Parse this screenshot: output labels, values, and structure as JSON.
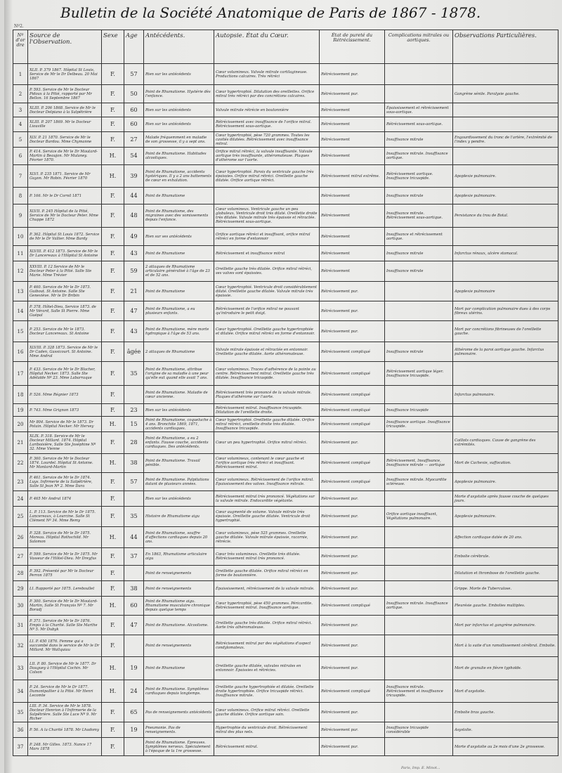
{
  "title": "Bulletin de la Société Anatomique de Paris de 1867 - 1878.",
  "sheet_number": "Nº2.",
  "columns": [
    "Nº d'ordre",
    "Source de l'Observation.",
    "Sexe",
    "Age",
    "Antécédents.",
    "Autopsie. État du Cœur.",
    "État de pureté du Rétrécissement.",
    "Complications mitrales ou aortiques.",
    "Observations Particulières."
  ],
  "rows": [
    {
      "n": "1",
      "src": "XLII. P. 379 1867. Hôpital St Louis, Service de Mr le Dr Delbeau. 20 Mai 1867",
      "sex": "F.",
      "age": "57",
      "ant": "Rien sur les antécédents",
      "aut": "Cœur volumineux. Valvule mitrale cartilagineuse. Productions calcaires. Très rétréci",
      "pur": "Rétrécissement pur.",
      "comp": "",
      "obs": ""
    },
    {
      "n": "2",
      "src": "P. 593. Service de Mr le Docteur Pidoux à la Pitié, rapporté par Mr Bellon. 16 Septembre 1867",
      "sex": "F.",
      "age": "50",
      "ant": "Point de Rhumatisme. Hystérie dès l'enfance.",
      "aut": "Cœur hypertrophié. Dilatation des oreillettes. Orifice mitral très rétréci par des concrétions calcaires.",
      "pur": "Rétrécissement pur.",
      "comp": "",
      "obs": "Gangrène sénile. Paralysie gauche."
    },
    {
      "n": "3",
      "src": "XLIII. P. 206 1868. Service de Mr le Docteur Delpiano à la Salpêtrière",
      "sex": "F.",
      "age": "60",
      "ant": "Rien sur les antécédents",
      "aut": "Valvule mitrale rétrécie en boutonnière",
      "pur": "Rétrécissement",
      "comp": "Épaississement et rétrécissement sous-aortique.",
      "obs": ""
    },
    {
      "n": "4",
      "src": "XLIII. P. 207 1869. Mr le Docteur Liouville",
      "sex": "F.",
      "age": "60",
      "ant": "Rien sur les antécédents",
      "aut": "Rétrécissement avec insuffisance de l'orifice mitral. Rétrécissement sous-aortique.",
      "pur": "Rétrécissement",
      "comp": "Rétrécissement sous-aortique.",
      "obs": ""
    },
    {
      "n": "5",
      "src": "XLV. P. 21 1870. Service de Mr le Docteur Bardou. Mme Chymanne",
      "sex": "F.",
      "age": "27",
      "ant": "Malade fréquemment en maladie de son grossesse, il y a sept ans.",
      "aut": "Cœur hypertrophié, pèse 720 grammes. Toutes les cavités dilatées. Rétrécissement avec insuffisance mitral.",
      "pur": "Rétrécissement",
      "comp": "Insuffisance mitrale",
      "obs": "Engourdissement du tronc de l'artère, l'extrémité de l'index y pendre."
    },
    {
      "n": "6",
      "src": "P. 414. Service de Mr le Dr Moutard-Martin à Beaujon. Mr Mulaney. Février 1870.",
      "sex": "H.",
      "age": "54",
      "ant": "Point de Rhumatisme. Habitudes alcooliques.",
      "aut": "Orifice mitral rétréci, la valvule insuffisante. Valvule aortique très insuffisante, athéromateuse. Plaques d'athérome sur l'aorte.",
      "pur": "Rétrécissement",
      "comp": "Insuffisance mitrale. Insuffisance aortique.",
      "obs": ""
    },
    {
      "n": "7",
      "src": "XLVI. P. 235 1871. Service de Mr Guyon. Mr Robin. Février 1870",
      "sex": "H.",
      "age": "39",
      "ant": "Point de Rhumatisme, accidents hystériques. Il y a 2 ans battements de cœur en exhalation.",
      "aut": "Cœur hypertrophié. Parois du ventricule gauche très épaissies. Orifice mitral rétréci. Oreillette gauche dilatée. Orifice aortique rétréci.",
      "pur": "Rétrécissement mitral extrême.",
      "comp": "Rétrécissement aortique. Insuffisance tricuspide.",
      "obs": "Apoplexie pulmonaire."
    },
    {
      "n": "8",
      "src": "P. 166. Mr le Dr Cornil 1871",
      "sex": "F.",
      "age": "44",
      "ant": "Point de Rhumatisme",
      "aut": "",
      "pur": "Rétrécissement",
      "comp": "Insuffisance mitrale",
      "obs": "Apoplexie pulmonaire."
    },
    {
      "n": "9",
      "src": "XLVII. P. 245 Hôpital de la Pitié, Service de Mr le Docteur Peter. Mme Chuppe 1872",
      "sex": "F.",
      "age": "48",
      "ant": "Point de Rhumatisme, des migraines avec des vomissements depuis l'enfance.",
      "aut": "Cœur volumineux. Ventricule gauche un peu globuleux. Ventricule droit très dilaté. Oreillette droite très dilatée. Valvule mitrale très épaissie et rétractée. Rétrécissement sous-aortique.",
      "pur": "Rétrécissement",
      "comp": "Insuffisance mitrale. Rétrécissement sous-aortique.",
      "obs": "Persistance du trou de Botal."
    },
    {
      "n": "10",
      "src": "P. 362. Hôpital St Louis 1872. Service de Mr le Dr Vallier. Mme Bardy",
      "sex": "F.",
      "age": "49",
      "ant": "Rien sur ses antécédents",
      "aut": "Orifice aortique rétréci et insuffisant, orifice mitral rétréci en forme d'entonnoir",
      "pur": "Rétrécissement",
      "comp": "Insuffisance et rétrécissement aortique.",
      "obs": ""
    },
    {
      "n": "11",
      "src": "XLVIII. P. 412 1873. Service de Mr le Dr Lancereaux à l'Hôpital St Antoine",
      "sex": "F.",
      "age": "43",
      "ant": "Point de Rhumatisme",
      "aut": "Rétrécissement et insuffisance mitral",
      "pur": "Rétrécissement",
      "comp": "Insuffisance mitrale",
      "obs": "Infarctus rénaux, ulcère stomacal."
    },
    {
      "n": "12",
      "src": "XXVIII. P. 12 Service de Mr le Docteur Peter à la Pitié. Salle Ste Marie. Mme Trévier",
      "sex": "F.",
      "age": "59",
      "ant": "2 attaques de Rhumatisme articulaire généralisé à l'âge de 23 et de 52 ans.",
      "aut": "Oreillette gauche très dilatée. Orifice mitral rétréci, ses valves sont épaissies.",
      "pur": "Rétrécissement",
      "comp": "Insuffisance mitrale",
      "obs": ""
    },
    {
      "n": "13",
      "src": "P. 460. Service de Mr le Dr 1873. Guibout. St Antoine. Salle Ste Geneviève. Mr le Dr Bribin",
      "sex": "F.",
      "age": "21",
      "ant": "Point de Rhumatisme",
      "aut": "Cœur hypertrophié. Ventricule droit considérablement dilaté. Oreillette gauche dilatée. Valvule mitrale très épaissie.",
      "pur": "Rétrécissement pur.",
      "comp": "",
      "obs": "Apoplexie pulmonaire"
    },
    {
      "n": "14",
      "src": "P. 378. Hôtel-Dieu, Service 1873. de Mr Vérard, Salle St Pierre. Mme Guépal",
      "sex": "F.",
      "age": "47",
      "ant": "Point de Rhumatisme, a eu plusieurs enfants.",
      "aut": "Rétrécissement de l'orifice mitral ne pouvant qu'introduire le petit doigt.",
      "pur": "Rétrécissement pur.",
      "comp": "",
      "obs": "Mort par complication pulmonaire dues à des corps fibreux utérins."
    },
    {
      "n": "15",
      "src": "P. 253. Service de Mr le 1873. Docteur Lancereaux. St Antoine",
      "sex": "F.",
      "age": "43",
      "ant": "Point de Rhumatisme, mère morte hydropique à l'âge de 53 ans.",
      "aut": "Cœur hypertrophié. Oreillette gauche hypertrophiée et dilatée. Orifice mitral rétréci en forme d'entonnoir.",
      "pur": "Rétrécissement pur.",
      "comp": "",
      "obs": "Mort par concrétions fibrineuses de l'oreillette gauche."
    },
    {
      "n": "16",
      "src": "XLVIII. P. 328 1873. Service de Mr le Dr Caden, Gassicourt. St Antoine. Mme Andral",
      "sex": "F.",
      "age": "âgée",
      "ant": "2 attaques de Rhumatisme",
      "aut": "Valvule mitrale épaissie et rétractée en entonnoir. Oreillette gauche dilatée. Aorte athéromateuse.",
      "pur": "Rétrécissement compliqué",
      "comp": "Insuffisance mitrale",
      "obs": "Athérome de la paroi aortique gauche. Infarctus pulmonaire."
    },
    {
      "n": "17",
      "src": "P. 433. Service de Mr le Dr Blacher, Hôpital Necker. 1873. Salle Ste Adélaïde Nº 23. Mme Labarraque",
      "sex": "F.",
      "age": "35",
      "ant": "Point de Rhumatisme, attribue l'origine de sa maladie à une peur qu'elle eut quand elle avait 7 ans.",
      "aut": "Cœur volumineux. Traces d'adhérence de la pointe au centre. Rétrécissement mitral. Oreillette gauche très dilatée. Insuffisance tricuspide.",
      "pur": "Rétrécissement compliqué",
      "comp": "Rétrécissement aortique léger. Insuffisance tricuspide.",
      "obs": ""
    },
    {
      "n": "18",
      "src": "P. 526. Mme Régnier 1873",
      "sex": "F.",
      "age": "",
      "ant": "Point de Rhumatisme. Maladie de cœur ancienne.",
      "aut": "Rétrécissement très prononcé de la valvule mitrale. Plaques d'athérome sur l'aorte.",
      "pur": "Rétrécissement compliqué",
      "comp": "",
      "obs": "Infarctus pulmonaire."
    },
    {
      "n": "19",
      "src": "P. 743. Mme Grignon 1873",
      "sex": "F.",
      "age": "23",
      "ant": "Rien sur les antécédents",
      "aut": "Rétrécissement mitral. Insuffisance tricuspide. Dilatation de l'oreillette droite.",
      "pur": "Rétrécissement compliqué",
      "comp": "Insuffisance tricuspide",
      "obs": ""
    },
    {
      "n": "20",
      "src": "Mr 804. Service de Mr le 1873. Dr Potain. Hôpital Necker. Mr Hervey",
      "sex": "H.",
      "age": "15",
      "ant": "Point de Rhumatisme, coqueluche à 4 ans. Bronchite 1869, 1871, accidents cardiaques.",
      "aut": "Cœur hypertrophié. Oreillette gauche dilatée. Orifice mitral rétréci, oreillette droite très dilatée. Insuffisance tricuspide.",
      "pur": "Rétrécissement compliqué",
      "comp": "Insuffisance aortique. Insuffisance tricuspide.",
      "obs": ""
    },
    {
      "n": "21",
      "src": "XLIX. P. 318. Service de Mr le Docteur Millard. 1874. Hôpital Lariboisière, Salle Ste Joséphine Nº 32. Mme Vienne",
      "sex": "F.",
      "age": "28",
      "ant": "Point de Rhumatisme, a eu 2 enfants. Fausse couche, accidents cardiaques. Des antécédents.",
      "aut": "Cœur un peu hypertrophié. Orifice mitral rétréci.",
      "pur": "Rétrécissement pur.",
      "comp": "",
      "obs": "Caillots cardiaques. Cause de gangrène des extrémités."
    },
    {
      "n": "22",
      "src": "P. 360. Service de Mr le Docteur 1874. Lourdel. Hôpital St Antoine. Mr Montard-Martin",
      "sex": "H.",
      "age": "38",
      "ant": "Point de Rhumatisme. Travail pénible.",
      "aut": "Cœur volumineux, contenant le cœur gauche et l'orifice aortique très rétréci et insuffisant. Rétrécissement mitral.",
      "pur": "Rétrécissement compliqué",
      "comp": "Rétrécissement, Insuffisance, Insuffisance mitrale — aortique",
      "obs": "Mort de Cachexie, suffocation."
    },
    {
      "n": "23",
      "src": "P. 461. Service de Mr le Dr 1874. Luys. Infirmerie de la Salpêtrière, Salle St Jean Nº 2. Mme Dara",
      "sex": "F.",
      "age": "57",
      "ant": "Point de Rhumatisme. Palpitations datant de plusieurs années.",
      "aut": "Cœur volumineux. Rétrécissement de l'orifice mitral. Épaississement des valves. Insuffisance mitrale.",
      "pur": "Rétrécissement compliqué",
      "comp": "Insuffisance mitrale. Myocardite scléreuse.",
      "obs": "Apoplexie pulmonaire."
    },
    {
      "n": "24",
      "src": "P. 465 Mr Andral 1874",
      "sex": "F.",
      "age": "",
      "ant": "Rien sur les antécédents",
      "aut": "Rétrécissement mitral très prononcé. Végétations sur la valvule mitrale. Endocardite végétante.",
      "pur": "Rétrécissement pur.",
      "comp": "",
      "obs": "Morte d'asystolie après fausse couche de quelques jours."
    },
    {
      "n": "25",
      "src": "L. P. 113. Service de Mr le Dr 1875. Lancereaux, à Lourcine. Salle St Clément Nº 34. Mme Remy",
      "sex": "F.",
      "age": "35",
      "ant": "Histoire de Rhumatisme aigu",
      "aut": "Cœur augmenté de volume. Valvule mitrale très épaissie. Oreillette gauche dilatée. Ventricule droit hypertrophié.",
      "pur": "Rétrécissement pur.",
      "comp": "Orifice aortique insuffisant, Végétations pulmonaire.",
      "obs": "Apoplexie pulmonaire."
    },
    {
      "n": "26",
      "src": "P. 328. Service de Mr le Dr 1875. Moreau. Hôpital Rothschild. Mr Salomon",
      "sex": "H.",
      "age": "44",
      "ant": "Point de Rhumatisme, souffre d'affections cardiaques depuis 20 ans.",
      "aut": "Cœur volumineux, pèse 525 grammes. Oreillette gauche dilatée. Valvule mitrale épaissie, racornie, rétrécie.",
      "pur": "Rétrécissement pur.",
      "comp": "",
      "obs": "Affection cardiaque datée de 20 ans."
    },
    {
      "n": "27",
      "src": "P. 599. Service de Mr le Dr 1875. Mr Vasseur de l'Hôtel-Dieu. Mr Dreyfus",
      "sex": "F.",
      "age": "37",
      "ant": "En 1863, Rhumatisme articulaire aigu",
      "aut": "Cœur très volumineux. Oreillette très dilatée. Rétrécissement mitral très prononcé.",
      "pur": "Rétrécissement pur.",
      "comp": "",
      "obs": "Embolie cérébrale."
    },
    {
      "n": "28",
      "src": "P. 392. Présenté par Mr le Docteur Perron 1875",
      "sex": "F.",
      "age": "",
      "ant": "Point de renseignements",
      "aut": "Oreillette gauche dilatée. Orifice mitral rétréci en forme de boutonnière.",
      "pur": "Rétrécissement pur.",
      "comp": "",
      "obs": "Dilatation et thrombose de l'oreillette gauche."
    },
    {
      "n": "29",
      "src": "LI. Rapporté par 1875. Lereboullet",
      "sex": "F.",
      "age": "38",
      "ant": "Point de renseignements",
      "aut": "Épaississement, rétrécissement de la valvule mitrale.",
      "pur": "Rétrécissement pur.",
      "comp": "",
      "obs": "Grippe. Morte de Tuberculose."
    },
    {
      "n": "30",
      "src": "P. 300. Service de Mr le Dr Moutard-Martin, Salle St François Nº 7. Mr Boradj",
      "sex": "H.",
      "age": "60",
      "ant": "Point de Rhumatisme aigu. Rhumatisme musculaire chronique depuis quelque temps",
      "aut": "Cœur hypertrophié, pèse 450 grammes. Péricardite. Rétrécissement mitral. Insuffisance aortique.",
      "pur": "Rétrécissement compliqué",
      "comp": "Insuffisance mitrale. Insuffisance aortique.",
      "obs": "Pleurésie gauche. Embolies multiples."
    },
    {
      "n": "31",
      "src": "P. 371. Service de Mr le Dr 1876. Empis à la Charité. Salle Ste Marthe Nº 5. Mr Dubyk",
      "sex": "F.",
      "age": "47",
      "ant": "Point de Rhumatisme. Alcoolisme.",
      "aut": "Oreillette gauche très dilatée. Orifice mitral rétréci. Aorte très athéromateuse.",
      "pur": "Rétrécissement pur.",
      "comp": "",
      "obs": "Mort par infarctus et gangrène pulmonaire."
    },
    {
      "n": "32",
      "src": "LI. P. 450 1876. Femme qui a succombé dans le service de Mr le Dr Millard. Mr Wallquiau",
      "sex": "F.",
      "age": "",
      "ant": "Point de renseignements",
      "aut": "Rétrécissement mitral par des végétations d'aspect condylomateux.",
      "pur": "Rétrécissement pur.",
      "comp": "",
      "obs": "Mort à la suite d'un ramollissement cérébral. Embolie."
    },
    {
      "n": "33",
      "src": "LII. P. 80. Service de Mr le 1877. Dr Dauguey à l'Hôpital Cochin. Mr Colson",
      "sex": "H.",
      "age": "19",
      "ant": "Point de Rhumatisme",
      "aut": "Oreillette gauche dilatée, valvules mitrales en entonnoir. Épaissies et rétrécies.",
      "pur": "Rétrécissement pur.",
      "comp": "",
      "obs": "Mort de granulie en fièvre typhoïde."
    },
    {
      "n": "34",
      "src": "P. 24. Service de Mr le Dr 1877. Dumontpallier à la Pitié. Mr Henri Lecomte",
      "sex": "H.",
      "age": "24",
      "ant": "Point de Rhumatisme. Symptômes cardiaques depuis longtemps.",
      "aut": "Oreillette gauche hypertrophiée et dilatée. Oreillette droite hypertrophiée. Orifice tricuspide rétréci. Insuffisance mitrale.",
      "pur": "Rétrécissement compliqué",
      "comp": "Insuffisance mitrale. Rétrécissement et insuffisance tricuspide.",
      "obs": "Mort d'asystolie."
    },
    {
      "n": "35",
      "src": "LIII. P. 34. Service de Mr le 1878. Docteur Henrion à l'Infirmerie de la Salpêtrière. Salle Ste Luce Nº 9. Mr Richer",
      "sex": "F.",
      "age": "65",
      "ant": "Pas de renseignements antécédents",
      "aut": "Cœur volumineux. Orifice mitral rétréci. Oreillette gauche dilatée. Orifice aortique sain.",
      "pur": "Rétrécissement pur.",
      "comp": "",
      "obs": "Embolie bras gauche."
    },
    {
      "n": "36",
      "src": "P. 56. A la Charité 1878. Mr Lhadomy",
      "sex": "F.",
      "age": "19",
      "ant": "Pneumonie. Pas de renseignements.",
      "aut": "Hypertrophie du ventricule droit. Rétrécissement mitral des plus nets.",
      "pur": "Rétrécissement pur.",
      "comp": "Insuffisance tricuspide considérable",
      "obs": "Asystolie."
    },
    {
      "n": "37",
      "src": "P. 248. Mr Gilles. 1873. Nance 17 Mars 1878",
      "sex": "F.",
      "age": "",
      "ant": "Point de Rhumatisme. Épreuves. Symptômes nerveux. Spécialement à l'époque de la 1re grossesse.",
      "aut": "Rétrécissement mitral.",
      "pur": "Rétrécissement pur.",
      "comp": "",
      "obs": "Morte d'asystolie au 2e mois d'une 2e grossesse."
    }
  ],
  "footer": "Paris, Imp. E. Minot..."
}
